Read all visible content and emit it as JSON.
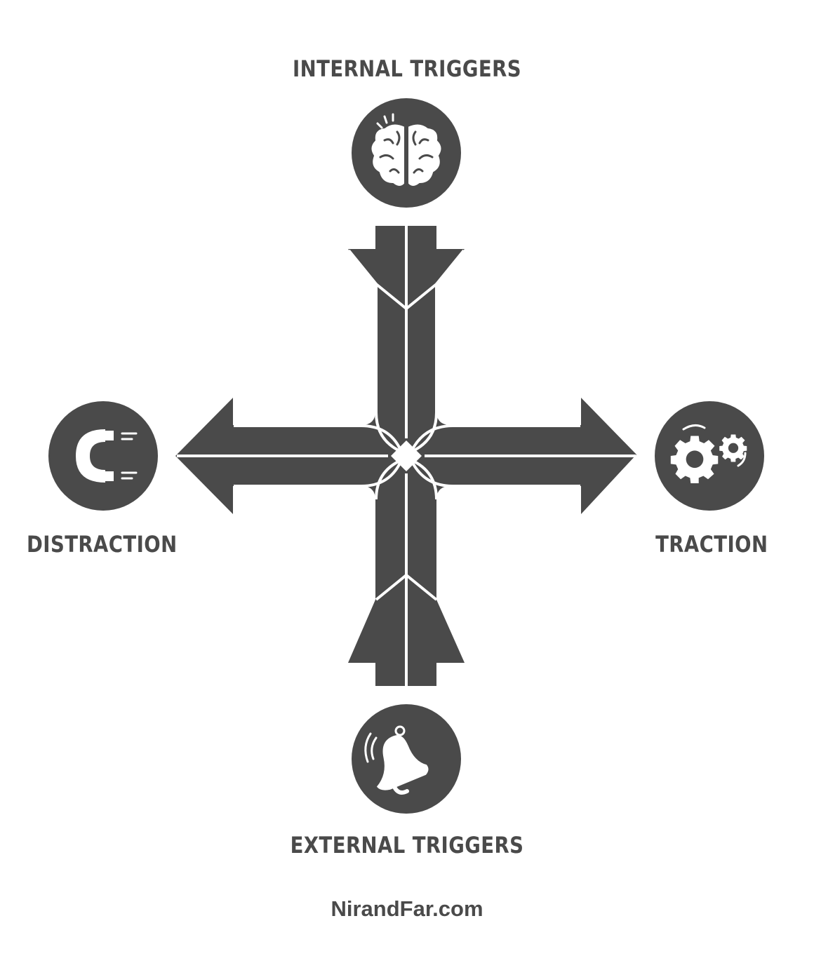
{
  "labels": {
    "internal_triggers": "INTERNAL TRIGGERS",
    "external_triggers": "EXTERNAL TRIGGERS",
    "distraction": "DISTRACTION",
    "traction": "TRACTION"
  },
  "footer": "NirandFar.com",
  "icons": {
    "top": "brain-icon",
    "bottom": "bell-icon",
    "left": "magnet-icon",
    "right": "gears-icon"
  },
  "colors": {
    "shape": "#4a4a4a",
    "background": "#ffffff"
  }
}
